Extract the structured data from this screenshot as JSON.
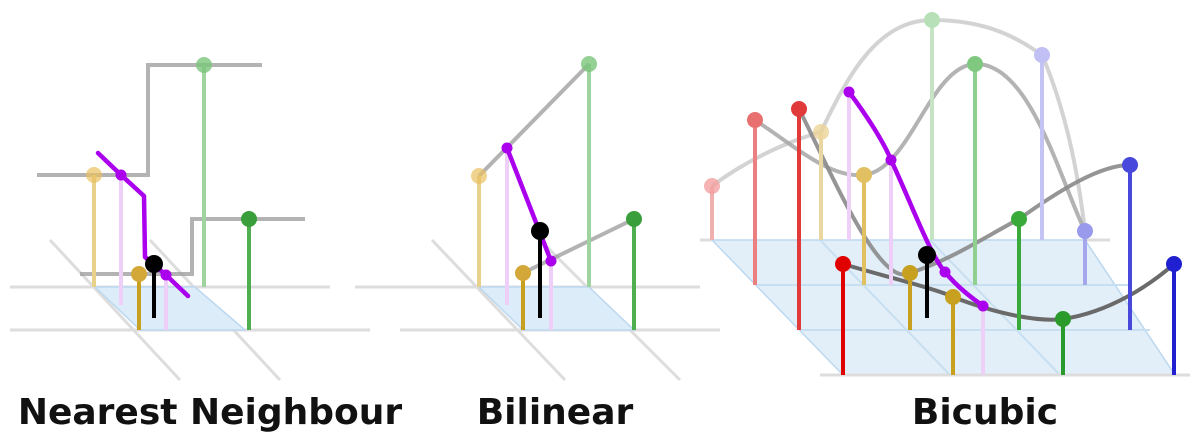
{
  "captions": {
    "nearest": "Nearest Neighbour",
    "bilinear": "Bilinear",
    "bicubic": "Bicubic"
  },
  "colors": {
    "grid": "#dddddd",
    "cell_fill": "#dcecf8",
    "interp_curve": "#aa00ee",
    "sample_point": "#000000",
    "support_curve": "#888888",
    "red": "#e00000",
    "green": "#2a9a2a",
    "gold": "#c8a020",
    "blue": "#2020d0"
  }
}
